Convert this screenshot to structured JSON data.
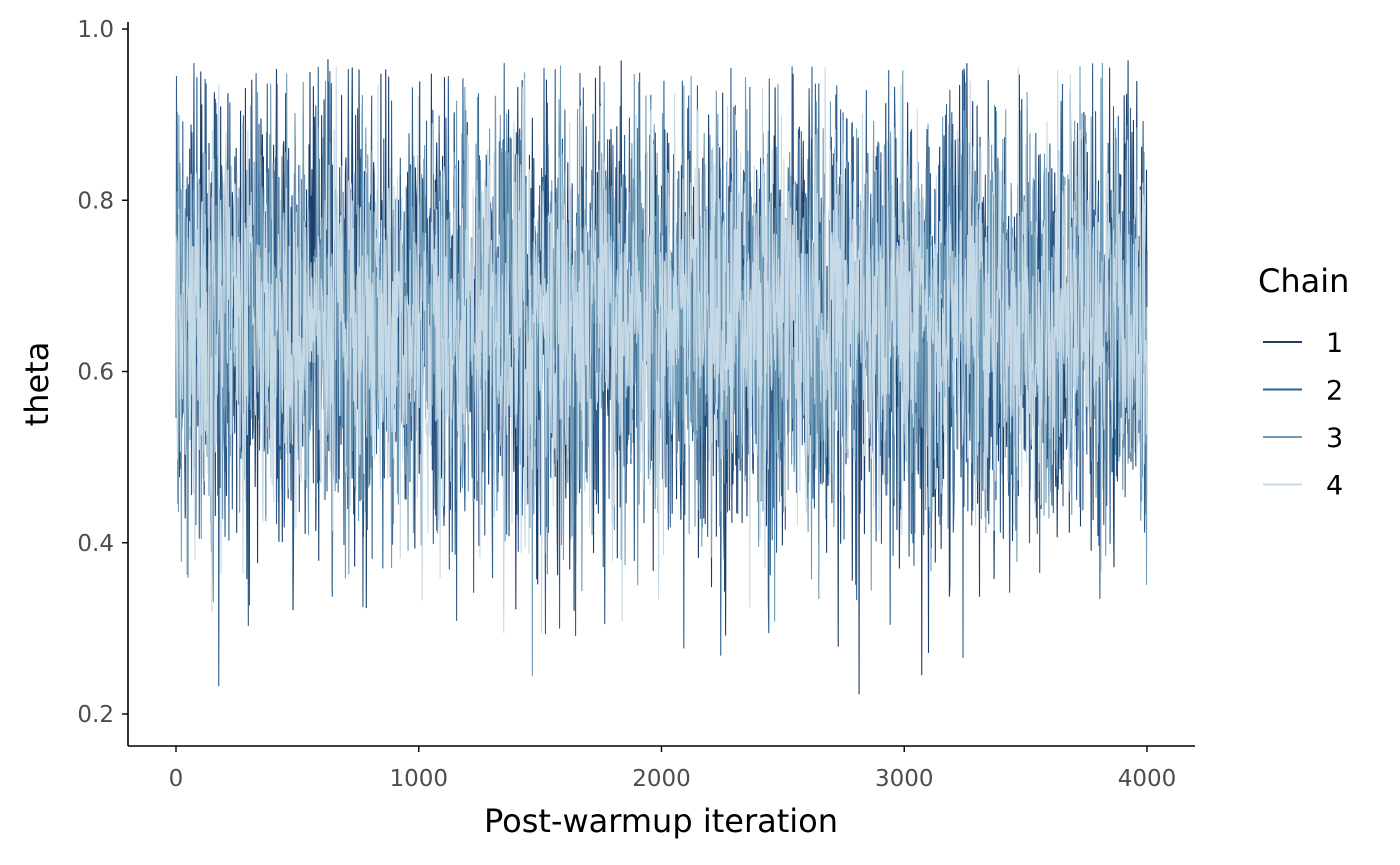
{
  "chart_data": {
    "type": "line",
    "title": "",
    "xlabel": "Post-warmup iteration",
    "ylabel": "theta",
    "xlim": [
      -200,
      4200
    ],
    "ylim": [
      0.18,
      1.0
    ],
    "x_ticks": [
      0,
      1000,
      2000,
      3000,
      4000
    ],
    "x_tick_labels": [
      "0",
      "1000",
      "2000",
      "3000",
      "4000"
    ],
    "y_ticks": [
      0.2,
      0.4,
      0.6,
      0.8,
      1.0
    ],
    "y_tick_labels": [
      "0.2",
      "0.4",
      "0.6",
      "0.8",
      "1.0"
    ],
    "grid": false,
    "legend": {
      "title": "Chain",
      "position": "right"
    },
    "series": [
      {
        "name": "1",
        "color": "#1b3e6b",
        "x_start": 0,
        "x_end": 4000,
        "mean": 0.66,
        "sd": 0.13,
        "min": 0.2,
        "max": 0.97
      },
      {
        "name": "2",
        "color": "#2e5f8e",
        "x_start": 0,
        "x_end": 4000,
        "mean": 0.66,
        "sd": 0.13,
        "min": 0.22,
        "max": 0.96
      },
      {
        "name": "3",
        "color": "#6f9bb7",
        "x_start": 0,
        "x_end": 4000,
        "mean": 0.66,
        "sd": 0.12,
        "min": 0.21,
        "max": 0.96
      },
      {
        "name": "4",
        "color": "#c6d9e6",
        "x_start": 0,
        "x_end": 4000,
        "mean": 0.66,
        "sd": 0.11,
        "min": 0.24,
        "max": 0.96
      }
    ]
  }
}
